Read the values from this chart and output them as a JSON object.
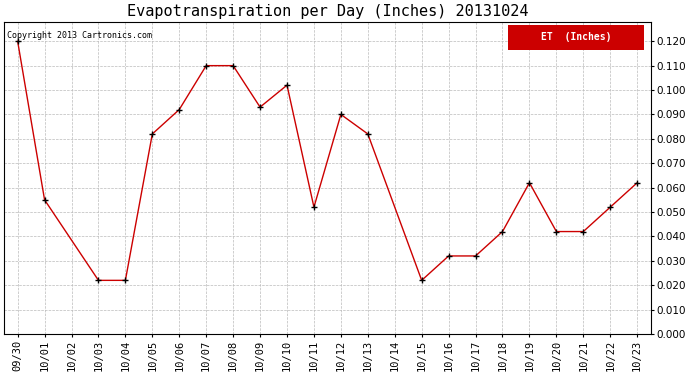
{
  "title": "Evapotranspiration per Day (Inches) 20131024",
  "x_labels": [
    "09/30",
    "10/01",
    "10/02",
    "10/03",
    "10/04",
    "10/05",
    "10/06",
    "10/07",
    "10/08",
    "10/09",
    "10/10",
    "10/11",
    "10/12",
    "10/13",
    "10/14",
    "10/15",
    "10/16",
    "10/17",
    "10/18",
    "10/19",
    "10/20",
    "10/21",
    "10/22",
    "10/23"
  ],
  "x_data": [
    0,
    1,
    3,
    4,
    5,
    6,
    7,
    8,
    9,
    10,
    11,
    12,
    13,
    15,
    16,
    17,
    18,
    19,
    20,
    21,
    22,
    23
  ],
  "y_values": [
    0.12,
    0.055,
    0.022,
    0.022,
    0.082,
    0.092,
    0.11,
    0.11,
    0.093,
    0.102,
    0.052,
    0.09,
    0.082,
    0.022,
    0.032,
    0.032,
    0.042,
    0.062,
    0.042,
    0.042,
    0.052,
    0.062
  ],
  "line_color": "#cc0000",
  "marker": "+",
  "marker_size": 5,
  "marker_color": "#000000",
  "ylim": [
    0.0,
    0.128
  ],
  "yticks": [
    0.0,
    0.01,
    0.02,
    0.03,
    0.04,
    0.05,
    0.06,
    0.07,
    0.08,
    0.09,
    0.1,
    0.11,
    0.12
  ],
  "legend_label": "ET  (Inches)",
  "legend_bg": "#cc0000",
  "legend_text_color": "#ffffff",
  "copyright_text": "Copyright 2013 Cartronics.com",
  "bg_color": "#ffffff",
  "grid_color": "#bbbbbb",
  "title_fontsize": 11,
  "tick_fontsize": 7.5
}
